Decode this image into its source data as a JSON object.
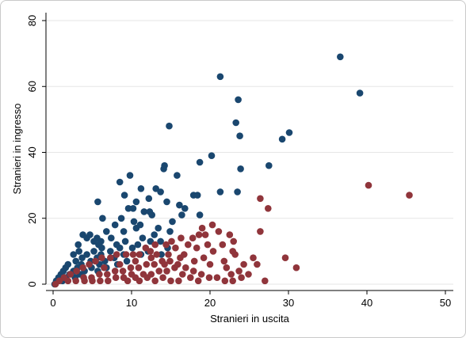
{
  "chart_data": {
    "type": "scatter",
    "title": "",
    "xlabel": "Stranieri in uscita",
    "ylabel": "Stranieri in ingresso",
    "xlim": [
      0,
      50
    ],
    "ylim": [
      0,
      80
    ],
    "x_ticks": [
      "0",
      "10",
      "20",
      "30",
      "40",
      "50"
    ],
    "y_ticks": [
      "0",
      "20",
      "40",
      "60",
      "80"
    ],
    "grid": true,
    "legend": "none",
    "series": [
      {
        "color": "#1a476f",
        "points": [
          [
            36.6,
            69
          ],
          [
            39.1,
            58
          ],
          [
            21.3,
            63
          ],
          [
            23.6,
            56
          ],
          [
            14.8,
            48
          ],
          [
            23.3,
            49
          ],
          [
            30.1,
            46
          ],
          [
            23.8,
            45
          ],
          [
            29.2,
            44
          ],
          [
            20.2,
            39
          ],
          [
            18.7,
            37
          ],
          [
            27.5,
            36
          ],
          [
            14.2,
            36
          ],
          [
            14.1,
            35
          ],
          [
            23.9,
            35
          ],
          [
            15.8,
            33
          ],
          [
            9.8,
            33
          ],
          [
            8.5,
            31
          ],
          [
            13.1,
            29
          ],
          [
            11.2,
            29
          ],
          [
            13.7,
            28
          ],
          [
            21.3,
            28
          ],
          [
            23.5,
            28
          ],
          [
            9.1,
            27
          ],
          [
            17.9,
            27
          ],
          [
            18.4,
            27
          ],
          [
            12.2,
            26
          ],
          [
            10.6,
            25
          ],
          [
            5.7,
            25
          ],
          [
            14.5,
            25
          ],
          [
            16.1,
            24
          ],
          [
            10.2,
            23
          ],
          [
            9.6,
            23
          ],
          [
            16.8,
            23
          ],
          [
            11.6,
            22
          ],
          [
            12.3,
            22
          ],
          [
            6.3,
            20
          ],
          [
            12.6,
            21
          ],
          [
            18.7,
            21
          ],
          [
            16.4,
            21
          ],
          [
            8.7,
            20
          ],
          [
            10.3,
            19
          ],
          [
            7.9,
            18
          ],
          [
            10.6,
            17
          ],
          [
            15.2,
            19
          ],
          [
            11.1,
            18
          ],
          [
            13.4,
            17
          ],
          [
            14.9,
            16
          ],
          [
            12.9,
            15
          ],
          [
            6.8,
            16
          ],
          [
            9.0,
            16
          ],
          [
            3.8,
            15
          ],
          [
            4.3,
            14
          ],
          [
            5.6,
            14
          ],
          [
            4.7,
            15
          ],
          [
            6.1,
            13
          ],
          [
            5.2,
            13
          ],
          [
            7.4,
            14
          ],
          [
            11.4,
            14
          ],
          [
            12.4,
            13
          ],
          [
            13.7,
            13
          ],
          [
            9.2,
            13
          ],
          [
            3.2,
            12
          ],
          [
            5.8,
            12
          ],
          [
            8.1,
            12
          ],
          [
            10.8,
            12
          ],
          [
            6.2,
            11
          ],
          [
            8.5,
            11
          ],
          [
            10.1,
            11
          ],
          [
            14.6,
            11
          ],
          [
            3.3,
            10
          ],
          [
            5.2,
            10
          ],
          [
            7.3,
            10
          ],
          [
            12.1,
            10
          ],
          [
            2.6,
            9
          ],
          [
            4.3,
            9
          ],
          [
            6.1,
            9
          ],
          [
            9.0,
            9
          ],
          [
            11.2,
            9
          ],
          [
            13.8,
            9
          ],
          [
            3.7,
            8
          ],
          [
            5.6,
            8
          ],
          [
            7.8,
            8
          ],
          [
            2.9,
            7
          ],
          [
            4.8,
            7
          ],
          [
            6.6,
            7
          ],
          [
            9.4,
            7
          ],
          [
            1.9,
            6
          ],
          [
            3.6,
            6
          ],
          [
            5.9,
            6
          ],
          [
            8.2,
            6
          ],
          [
            1.6,
            5
          ],
          [
            3.1,
            5
          ],
          [
            4.9,
            5
          ],
          [
            6.8,
            5
          ],
          [
            1.3,
            4
          ],
          [
            2.6,
            4
          ],
          [
            4.0,
            4
          ],
          [
            5.7,
            4
          ],
          [
            1.0,
            3
          ],
          [
            2.1,
            3
          ],
          [
            3.4,
            3
          ],
          [
            0.7,
            2
          ],
          [
            1.6,
            2
          ],
          [
            2.8,
            2
          ],
          [
            0.4,
            1
          ],
          [
            1.2,
            1
          ],
          [
            0.2,
            0
          ]
        ]
      },
      {
        "color": "#90353b",
        "points": [
          [
            45.4,
            27
          ],
          [
            40.2,
            30
          ],
          [
            26.4,
            26
          ],
          [
            27.4,
            23
          ],
          [
            20.3,
            18
          ],
          [
            26.4,
            16
          ],
          [
            19.0,
            17
          ],
          [
            19.4,
            15
          ],
          [
            21.1,
            16
          ],
          [
            22.5,
            15
          ],
          [
            18.6,
            15
          ],
          [
            17.8,
            14
          ],
          [
            16.3,
            14
          ],
          [
            15.1,
            13
          ],
          [
            19.7,
            12
          ],
          [
            21.6,
            12
          ],
          [
            23.0,
            13
          ],
          [
            17.2,
            12
          ],
          [
            14.4,
            12
          ],
          [
            13.0,
            12
          ],
          [
            11.8,
            11
          ],
          [
            15.6,
            11
          ],
          [
            18.3,
            11
          ],
          [
            20.4,
            10
          ],
          [
            23.2,
            9
          ],
          [
            22.9,
            10
          ],
          [
            29.6,
            8
          ],
          [
            31.0,
            5
          ],
          [
            26.0,
            6
          ],
          [
            27.0,
            1
          ],
          [
            24.9,
            3
          ],
          [
            23.7,
            4
          ],
          [
            22.1,
            5
          ],
          [
            20.0,
            6
          ],
          [
            18.0,
            7
          ],
          [
            16.2,
            8
          ],
          [
            14.7,
            9
          ],
          [
            13.2,
            9
          ],
          [
            12.4,
            10
          ],
          [
            11.0,
            9
          ],
          [
            10.2,
            9
          ],
          [
            9.3,
            9
          ],
          [
            8.1,
            9
          ],
          [
            7.3,
            8
          ],
          [
            6.2,
            8
          ],
          [
            5.4,
            7
          ],
          [
            4.6,
            6
          ],
          [
            3.8,
            5
          ],
          [
            3.0,
            4
          ],
          [
            2.2,
            3
          ],
          [
            1.4,
            2
          ],
          [
            0.8,
            1
          ],
          [
            0.3,
            0
          ],
          [
            1.9,
            1
          ],
          [
            2.9,
            1
          ],
          [
            3.9,
            2
          ],
          [
            4.9,
            2
          ],
          [
            5.9,
            3
          ],
          [
            6.9,
            3
          ],
          [
            7.9,
            4
          ],
          [
            8.9,
            4
          ],
          [
            9.9,
            5
          ],
          [
            10.9,
            5
          ],
          [
            11.9,
            6
          ],
          [
            12.9,
            6
          ],
          [
            13.9,
            7
          ],
          [
            14.9,
            7
          ],
          [
            15.9,
            6
          ],
          [
            16.9,
            5
          ],
          [
            17.9,
            4
          ],
          [
            18.9,
            3
          ],
          [
            19.9,
            2
          ],
          [
            20.9,
            2
          ],
          [
            21.9,
            1
          ],
          [
            22.9,
            1
          ],
          [
            24.0,
            2
          ],
          [
            9.5,
            1
          ],
          [
            10.5,
            2
          ],
          [
            11.5,
            3
          ],
          [
            12.5,
            3
          ],
          [
            13.5,
            4
          ],
          [
            14.5,
            4
          ],
          [
            15.5,
            5
          ],
          [
            16.5,
            3
          ],
          [
            17.5,
            2
          ],
          [
            18.5,
            1
          ],
          [
            6.0,
            1
          ],
          [
            7.0,
            1
          ],
          [
            8.0,
            2
          ],
          [
            9.0,
            2
          ],
          [
            10.0,
            3
          ],
          [
            11.0,
            1
          ],
          [
            12.0,
            2
          ],
          [
            13.0,
            1
          ],
          [
            14.0,
            2
          ],
          [
            15.0,
            1
          ],
          [
            16.0,
            1
          ],
          [
            4.0,
            1
          ],
          [
            5.0,
            1
          ],
          [
            6.5,
            5
          ],
          [
            8.5,
            6
          ],
          [
            10.5,
            7
          ],
          [
            12.5,
            8
          ],
          [
            14.2,
            6
          ],
          [
            16.7,
            9
          ],
          [
            19.2,
            8
          ],
          [
            21.8,
            7
          ],
          [
            24.3,
            6
          ],
          [
            25.5,
            8
          ],
          [
            22.7,
            3
          ]
        ]
      }
    ]
  }
}
